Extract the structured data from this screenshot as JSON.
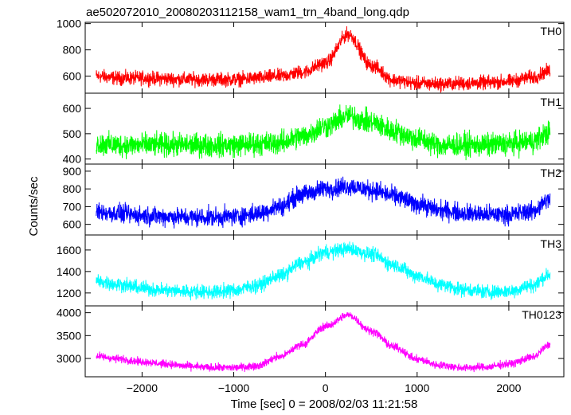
{
  "title": "ae502072010_20080203112158_wam1_trn_4band_long.qdp",
  "ylabel": "Counts/sec",
  "xlabel": "Time [sec] 0 = 2008/02/03 11:21:58",
  "chart_data": {
    "type": "line",
    "title": "ae502072010_20080203112158_wam1_trn_4band_long.qdp",
    "xlabel": "Time [sec] 0 = 2008/02/03 11:21:58",
    "ylabel": "Counts/sec",
    "xlim": [
      -2620,
      2600
    ],
    "x_ticks": [
      -2000,
      -1000,
      0,
      1000,
      2000
    ],
    "x_tick_labels": [
      "−2000",
      "−1000",
      "0",
      "1000",
      "2000"
    ],
    "x_sample_step": 250,
    "x": [
      -2500,
      -2250,
      -2000,
      -1750,
      -1500,
      -1250,
      -1000,
      -750,
      -500,
      -250,
      0,
      250,
      500,
      750,
      1000,
      1250,
      1500,
      1750,
      2000,
      2250,
      2450
    ],
    "panels": [
      {
        "name": "TH0",
        "color": "#ff0000",
        "ylim": [
          470,
          1010
        ],
        "y_ticks": [
          600,
          800,
          1000
        ],
        "values": [
          600,
          585,
          585,
          580,
          575,
          575,
          575,
          585,
          600,
          630,
          700,
          920,
          680,
          570,
          545,
          540,
          545,
          550,
          560,
          590,
          640
        ],
        "noise": 40
      },
      {
        "name": "TH1",
        "color": "#00ff00",
        "ylim": [
          380,
          660
        ],
        "y_ticks": [
          400,
          500,
          600
        ],
        "values": [
          460,
          455,
          455,
          455,
          455,
          455,
          455,
          460,
          465,
          490,
          530,
          570,
          545,
          510,
          480,
          455,
          455,
          455,
          460,
          470,
          505
        ],
        "noise": 35
      },
      {
        "name": "TH2",
        "color": "#0000ff",
        "ylim": [
          540,
          940
        ],
        "y_ticks": [
          600,
          700,
          800,
          900
        ],
        "values": [
          670,
          660,
          650,
          645,
          640,
          640,
          645,
          660,
          700,
          770,
          800,
          815,
          795,
          760,
          715,
          680,
          665,
          655,
          655,
          675,
          740
        ],
        "noise": 40
      },
      {
        "name": "TH3",
        "color": "#00ffff",
        "ylim": [
          1080,
          1740
        ],
        "y_ticks": [
          1200,
          1400,
          1600
        ],
        "values": [
          1310,
          1280,
          1245,
          1225,
          1215,
          1210,
          1225,
          1270,
          1360,
          1480,
          1580,
          1610,
          1560,
          1460,
          1360,
          1280,
          1235,
          1210,
          1215,
          1270,
          1370
        ],
        "noise": 50
      },
      {
        "name": "TH0123",
        "color": "#ff00ff",
        "ylim": [
          2600,
          4150
        ],
        "y_ticks": [
          3000,
          3500,
          4000
        ],
        "values": [
          3050,
          2990,
          2930,
          2880,
          2830,
          2800,
          2800,
          2840,
          3040,
          3310,
          3700,
          3950,
          3600,
          3250,
          2980,
          2850,
          2800,
          2810,
          2880,
          3020,
          3300
        ],
        "noise": 65
      }
    ]
  }
}
